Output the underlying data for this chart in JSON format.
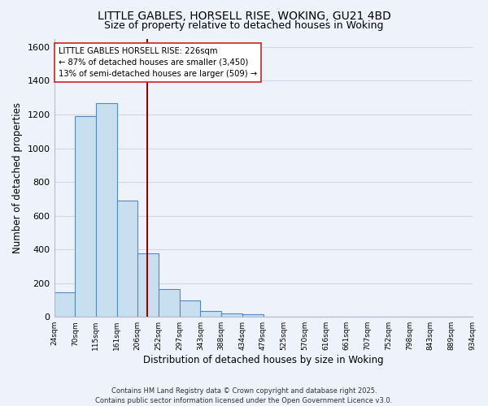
{
  "title": "LITTLE GABLES, HORSELL RISE, WOKING, GU21 4BD",
  "subtitle": "Size of property relative to detached houses in Woking",
  "xlabel": "Distribution of detached houses by size in Woking",
  "ylabel": "Number of detached properties",
  "bar_values": [
    145,
    1190,
    1265,
    690,
    375,
    165,
    95,
    35,
    20,
    15,
    0,
    0,
    0,
    0,
    0,
    0,
    0,
    0,
    0,
    0
  ],
  "bin_labels": [
    "24sqm",
    "70sqm",
    "115sqm",
    "161sqm",
    "206sqm",
    "252sqm",
    "297sqm",
    "343sqm",
    "388sqm",
    "434sqm",
    "479sqm",
    "525sqm",
    "570sqm",
    "616sqm",
    "661sqm",
    "707sqm",
    "752sqm",
    "798sqm",
    "843sqm",
    "889sqm",
    "934sqm"
  ],
  "bar_color": "#c8dff0",
  "bar_edge_color": "#5588bb",
  "vline_color": "#990000",
  "ylim": [
    0,
    1650
  ],
  "yticks": [
    0,
    200,
    400,
    600,
    800,
    1000,
    1200,
    1400,
    1600
  ],
  "annotation_title": "LITTLE GABLES HORSELL RISE: 226sqm",
  "annotation_line1": "← 87% of detached houses are smaller (3,450)",
  "annotation_line2": "13% of semi-detached houses are larger (509) →",
  "footer_line1": "Contains HM Land Registry data © Crown copyright and database right 2025.",
  "footer_line2": "Contains public sector information licensed under the Open Government Licence v3.0.",
  "bg_color": "#eef2fb",
  "title_fontsize": 10,
  "subtitle_fontsize": 9,
  "grid_color": "#d0d8e8"
}
